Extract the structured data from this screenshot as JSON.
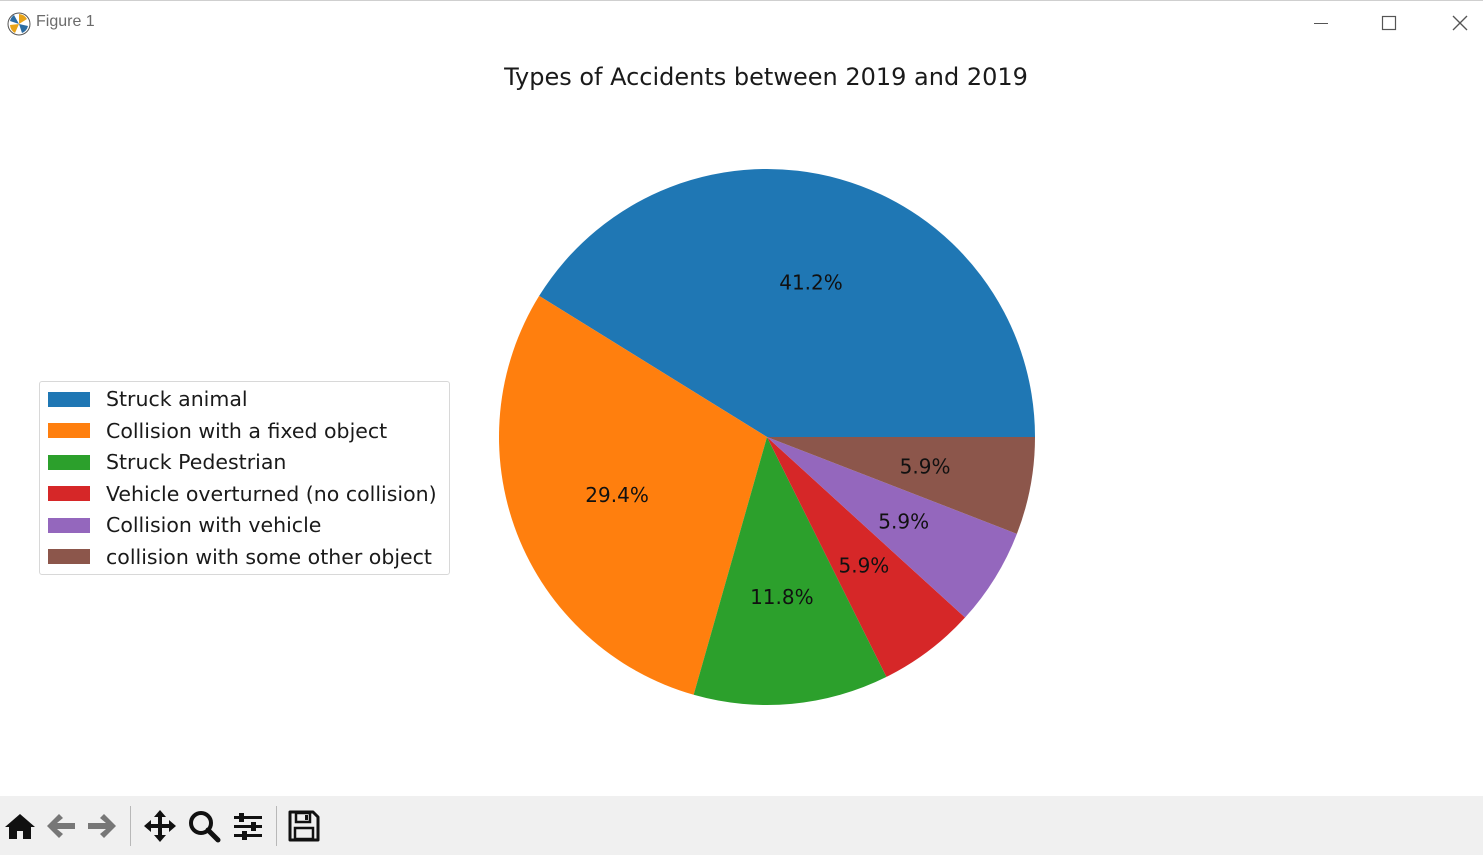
{
  "window": {
    "title": "Figure 1",
    "icons": {
      "app": "matplotlib-icon",
      "minimize": "minimize-icon",
      "maximize": "maximize-icon",
      "close": "close-icon"
    }
  },
  "toolbar": {
    "buttons": [
      {
        "name": "home",
        "icon": "home-icon"
      },
      {
        "name": "back",
        "icon": "arrow-left-icon"
      },
      {
        "name": "forward",
        "icon": "arrow-right-icon"
      },
      {
        "name": "pan",
        "icon": "move-icon"
      },
      {
        "name": "zoom",
        "icon": "zoom-icon"
      },
      {
        "name": "configure-subplots",
        "icon": "sliders-icon"
      },
      {
        "name": "save",
        "icon": "save-icon"
      }
    ]
  },
  "chart_data": {
    "type": "pie",
    "title": "Types of Accidents between 2019 and 2019",
    "start_angle_deg": 0,
    "direction": "counterclockwise",
    "legend_position": "center-left",
    "slices": [
      {
        "label": "Struck animal",
        "value": 7,
        "pct_label": "41.2%",
        "color": "#1f77b4"
      },
      {
        "label": "Collision with a fixed object",
        "value": 5,
        "pct_label": "29.4%",
        "color": "#ff7f0e"
      },
      {
        "label": "Struck Pedestrian",
        "value": 2,
        "pct_label": "11.8%",
        "color": "#2ca02c"
      },
      {
        "label": "Vehicle overturned (no collision)",
        "value": 1,
        "pct_label": "5.9%",
        "color": "#d62728"
      },
      {
        "label": "Collision with vehicle",
        "value": 1,
        "pct_label": "5.9%",
        "color": "#9467bd"
      },
      {
        "label": "collision with some other object",
        "value": 1,
        "pct_label": "5.9%",
        "color": "#8c564b"
      }
    ]
  }
}
